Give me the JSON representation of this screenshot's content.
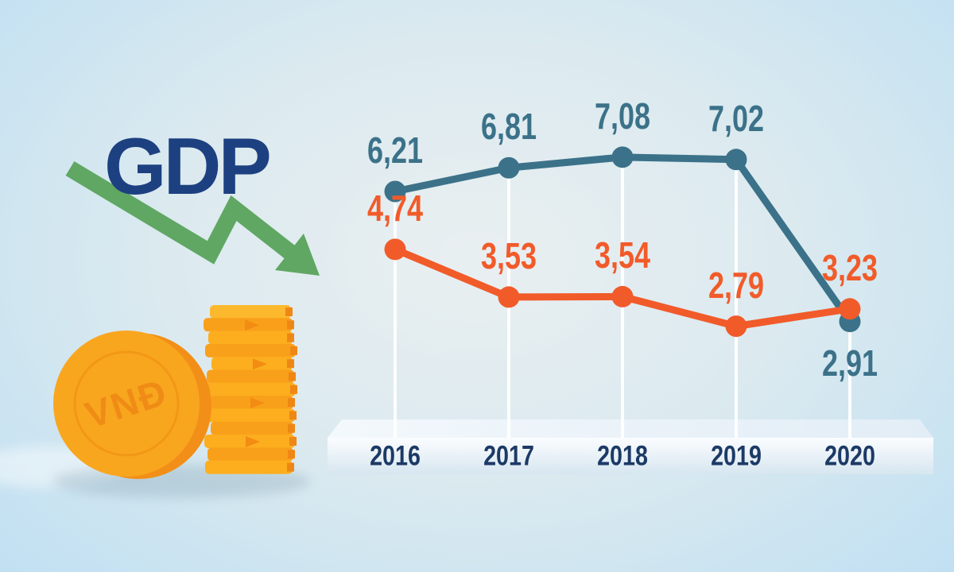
{
  "title": {
    "text": "GDP"
  },
  "coin": {
    "currency_label": "VNĐ"
  },
  "colors": {
    "title_navy": "#1d4080",
    "axis_navy": "#1c3a66",
    "arrow_green": "#5fa763",
    "teal": "#3b7289",
    "orange": "#f15b2a",
    "coin_gold": "#f9a61f",
    "coin_dark": "#ef8c16",
    "platform_face": "#e9f1f8"
  },
  "chart_data": {
    "type": "line",
    "categories": [
      "2016",
      "2017",
      "2018",
      "2019",
      "2020"
    ],
    "series": [
      {
        "name": "gdp-growth-teal",
        "color": "#3b7289",
        "values": [
          6.21,
          6.81,
          7.08,
          7.02,
          2.91
        ],
        "labels": [
          "6,21",
          "6,81",
          "7,08",
          "7,02",
          "2,91"
        ],
        "label_placement": [
          "above",
          "above",
          "above",
          "above",
          "below"
        ]
      },
      {
        "name": "gdp-growth-orange",
        "color": "#f15b2a",
        "values": [
          4.74,
          3.53,
          3.54,
          2.79,
          3.23
        ],
        "labels": [
          "4,74",
          "3,53",
          "3,54",
          "2,79",
          "3,23"
        ],
        "label_placement": [
          "above",
          "above",
          "above",
          "above",
          "above"
        ]
      }
    ],
    "decimal_separator": ",",
    "legend": "none",
    "grid": "off",
    "value_range_estimate": [
      0,
      8
    ]
  }
}
